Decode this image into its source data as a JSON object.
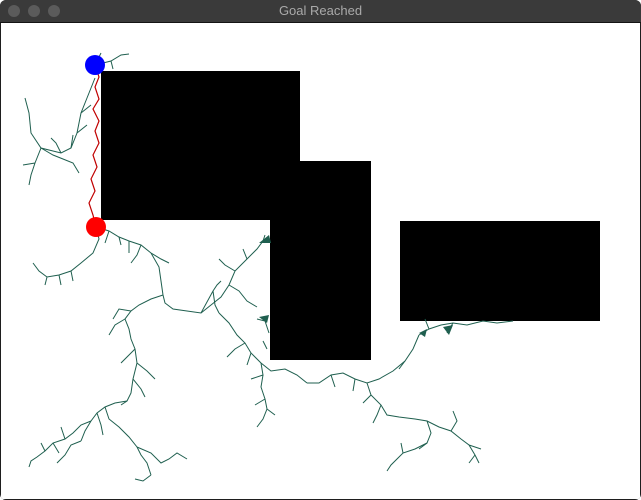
{
  "window": {
    "title": "Goal Reached"
  },
  "scene": {
    "background_color": "#ffffff",
    "obstacle_color": "#000000",
    "tree_color": "#1f5f4f",
    "path_color": "#c00000",
    "start_color": "#0000ff",
    "goal_color": "#ff0000"
  },
  "icons": {
    "close": "traffic-light",
    "minimize": "traffic-light",
    "zoom": "traffic-light"
  }
}
